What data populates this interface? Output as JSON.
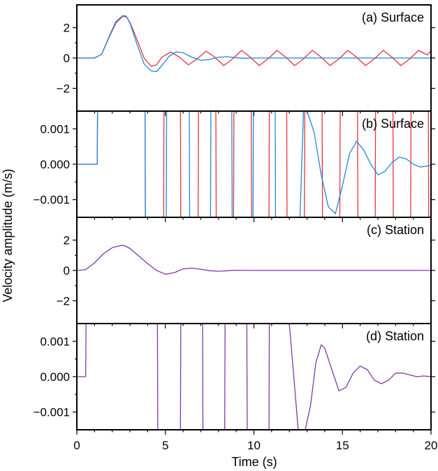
{
  "chart_data": {
    "type": "line",
    "ylabel": "Velocity amplitude (m/s)",
    "xlabel": "Time (s)",
    "xlim": [
      0,
      20
    ],
    "xticks": [
      0,
      5,
      10,
      15,
      20
    ],
    "xtick_labels": [
      "0",
      "5",
      "10",
      "15",
      "20"
    ],
    "series_colors": {
      "red": "#e8343a",
      "blue": "#1f86e0",
      "overlap": "#7e3aa8"
    },
    "panels": [
      {
        "title": "(a) Surface",
        "ylim": [
          -3.5,
          3.5
        ],
        "yticks": [
          2,
          0,
          -2
        ],
        "ytick_labels": [
          "2",
          "0",
          "−2"
        ],
        "series": [
          {
            "color": "red",
            "x": [
              0,
              1.0,
              1.4,
              1.8,
              2.2,
              2.6,
              2.8,
              3.0,
              3.4,
              3.8,
              4.2,
              4.5,
              4.8,
              5.3,
              5.8,
              6.3,
              6.8,
              7.3,
              7.8,
              8.3,
              8.8,
              9.3,
              9.8,
              10.3,
              10.8,
              11.3,
              11.8,
              12.3,
              12.8,
              13.3,
              13.8,
              14.3,
              14.8,
              15.3,
              15.8,
              16.3,
              16.8,
              17.3,
              17.8,
              18.3,
              18.8,
              19.3,
              19.8,
              20.0
            ],
            "y": [
              0,
              0,
              0.25,
              1.3,
              2.3,
              2.75,
              2.7,
              2.35,
              1.2,
              0.0,
              -0.55,
              -0.45,
              0.05,
              0.4,
              0.05,
              -0.45,
              -0.05,
              0.45,
              0.05,
              -0.5,
              -0.05,
              0.5,
              0.05,
              -0.5,
              -0.05,
              0.5,
              0.05,
              -0.5,
              -0.05,
              0.5,
              0.05,
              -0.5,
              -0.05,
              0.5,
              0.05,
              -0.5,
              -0.05,
              0.5,
              0.05,
              -0.5,
              -0.05,
              0.5,
              0.2,
              0.5
            ]
          },
          {
            "color": "blue",
            "x": [
              0,
              1.0,
              1.4,
              1.8,
              2.2,
              2.6,
              2.8,
              3.0,
              3.4,
              3.8,
              4.2,
              4.5,
              4.8,
              5.2,
              5.6,
              6.0,
              6.5,
              7.0,
              7.5,
              8.0,
              8.5,
              9.0,
              9.5,
              10.0,
              11.0,
              12.0,
              14.0,
              16.0,
              18.0,
              20.0
            ],
            "y": [
              0,
              0,
              0.25,
              1.35,
              2.4,
              2.8,
              2.75,
              2.3,
              0.9,
              -0.4,
              -0.85,
              -0.9,
              -0.5,
              0.1,
              0.4,
              0.35,
              0.05,
              -0.15,
              -0.1,
              0.05,
              0.08,
              0.02,
              -0.02,
              0,
              0,
              0,
              0,
              0,
              0,
              0
            ]
          }
        ]
      },
      {
        "title": "(b) Surface",
        "ylim": [
          -0.0015,
          0.0015
        ],
        "yticks": [
          0.001,
          0.0,
          -0.001
        ],
        "ytick_labels": [
          "0.001",
          "0.000",
          "−0.001"
        ],
        "series": [
          {
            "color": "red",
            "x": [
              0,
              1.15,
              1.17,
              1.19,
              1.21,
              3.85,
              3.87,
              4.9,
              4.92,
              5.85,
              5.87,
              6.85,
              6.87,
              7.85,
              7.87,
              8.85,
              8.87,
              9.85,
              9.87,
              10.85,
              10.87,
              11.85,
              11.87,
              12.85,
              12.87,
              13.85,
              13.87,
              14.85,
              14.87,
              15.85,
              15.87,
              16.85,
              16.87,
              17.85,
              17.87,
              18.85,
              18.87,
              19.85,
              19.87,
              20.0
            ],
            "y": [
              0,
              0,
              0.0015,
              0.0015,
              0.0015,
              0.0015,
              -0.0015,
              -0.0015,
              0.0015,
              0.0015,
              -0.0015,
              -0.0015,
              0.0015,
              0.0015,
              -0.0015,
              -0.0015,
              0.0015,
              0.0015,
              -0.0015,
              -0.0015,
              0.0015,
              0.0015,
              -0.0015,
              -0.0015,
              0.0015,
              0.0015,
              -0.0015,
              -0.0015,
              0.0015,
              0.0015,
              -0.0015,
              -0.0015,
              0.0015,
              0.0015,
              -0.0015,
              -0.0015,
              0.0015,
              0.0015,
              -0.0015,
              -0.0015
            ]
          },
          {
            "color": "blue",
            "x": [
              0,
              1.15,
              1.17,
              3.85,
              3.87,
              5.05,
              5.07,
              6.35,
              6.37,
              7.55,
              7.57,
              8.75,
              8.77,
              9.95,
              9.97,
              11.2,
              11.22,
              12.6,
              12.8,
              13.0,
              13.4,
              13.8,
              14.2,
              14.6,
              15.0,
              15.4,
              15.8,
              16.2,
              16.6,
              17.0,
              17.4,
              17.8,
              18.2,
              18.6,
              19.0,
              19.4,
              19.8,
              20.0
            ],
            "y": [
              0,
              0,
              0.0015,
              0.0015,
              -0.0015,
              -0.0015,
              0.0015,
              0.0015,
              -0.0015,
              -0.0015,
              0.0015,
              0.0015,
              -0.0015,
              -0.0015,
              0.0015,
              0.0015,
              -0.0015,
              -0.0015,
              0.0015,
              0.0015,
              0.0009,
              -0.0003,
              -0.0012,
              -0.0014,
              -0.0006,
              0.0003,
              0.00065,
              0.0004,
              0.0,
              -0.0003,
              -0.0002,
              5e-05,
              0.0002,
              0.00015,
              -0.0,
              -8e-05,
              -5e-05,
              -3e-05
            ]
          }
        ]
      },
      {
        "title": "(c) Station",
        "ylim": [
          -3.5,
          3.5
        ],
        "yticks": [
          2,
          0,
          -2
        ],
        "ytick_labels": [
          "2",
          "0",
          "−2"
        ],
        "series": [
          {
            "color": "overlap",
            "x": [
              0,
              0.5,
              1.0,
              1.5,
              2.0,
              2.5,
              2.7,
              3.0,
              3.5,
              4.0,
              4.5,
              5.0,
              5.5,
              6.0,
              6.5,
              7.0,
              7.5,
              8.0,
              8.5,
              9.0,
              10.0,
              12.0,
              14.0,
              16.0,
              18.0,
              20.0
            ],
            "y": [
              0,
              0.05,
              0.5,
              1.1,
              1.5,
              1.65,
              1.63,
              1.45,
              0.95,
              0.45,
              0.0,
              -0.25,
              -0.15,
              0.1,
              0.15,
              0.08,
              -0.02,
              -0.05,
              -0.02,
              0.01,
              0,
              0,
              0,
              0,
              0,
              0
            ]
          }
        ]
      },
      {
        "title": "(d) Station",
        "ylim": [
          -0.0015,
          0.0015
        ],
        "yticks": [
          0.001,
          0.0,
          -0.001
        ],
        "ytick_labels": [
          "0.001",
          "0.000",
          "−0.001"
        ],
        "series": [
          {
            "color": "overlap",
            "x": [
              0,
              0.5,
              0.52,
              4.55,
              4.57,
              5.85,
              5.87,
              7.1,
              7.12,
              8.35,
              8.37,
              9.6,
              9.62,
              10.85,
              10.87,
              11.0,
              11.5,
              12.0,
              12.5,
              12.9,
              13.2,
              13.5,
              13.8,
              14.0,
              14.4,
              14.8,
              15.2,
              15.6,
              16.0,
              16.4,
              16.8,
              17.2,
              17.6,
              18.0,
              18.4,
              18.8,
              19.2,
              19.6,
              20.0
            ],
            "y": [
              0,
              0,
              0.0015,
              0.0015,
              -0.0015,
              -0.0015,
              0.0015,
              0.0015,
              -0.0015,
              -0.0015,
              0.0015,
              0.0015,
              -0.0015,
              -0.0015,
              0.0015,
              0.0015,
              0.0015,
              0.0015,
              -0.0015,
              -0.0015,
              -0.0008,
              0.0004,
              0.0009,
              0.0008,
              0.0002,
              -0.0004,
              -0.0003,
              0.0001,
              0.0003,
              0.0002,
              -0.0001,
              -0.0002,
              -0.0001,
              0.0001,
              0.0001,
              5e-05,
              0.0,
              2e-05,
              0.0
            ]
          }
        ]
      }
    ]
  }
}
